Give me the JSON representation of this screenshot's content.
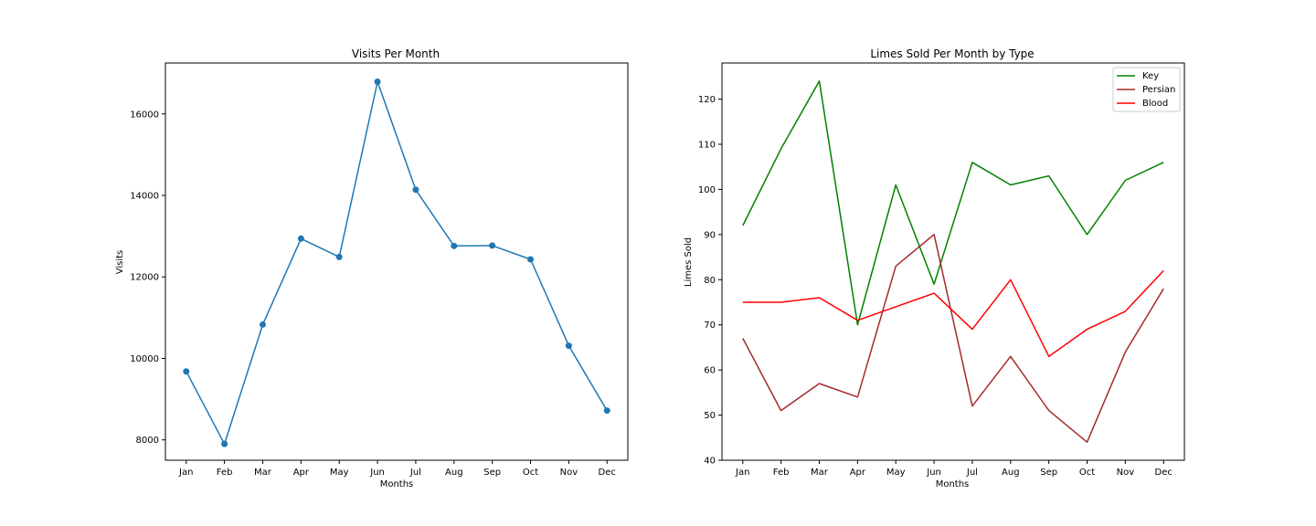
{
  "chart_data": [
    {
      "type": "line",
      "title": "Visits Per Month",
      "xlabel": "Months",
      "ylabel": "Visits",
      "categories": [
        "Jan",
        "Feb",
        "Mar",
        "Apr",
        "May",
        "Jun",
        "Jul",
        "Aug",
        "Sep",
        "Oct",
        "Nov",
        "Dec"
      ],
      "ylim": [
        7500,
        17250
      ],
      "yticks": [
        8000,
        10000,
        12000,
        14000,
        16000
      ],
      "grid": false,
      "markers": true,
      "series": [
        {
          "color": "#1f77b4",
          "values": [
            9680,
            7900,
            10830,
            12940,
            12490,
            16790,
            14140,
            12760,
            12770,
            12430,
            10310,
            8720
          ]
        }
      ]
    },
    {
      "type": "line",
      "title": "Limes Sold Per Month by Type",
      "xlabel": "Months",
      "ylabel": "Limes Sold",
      "categories": [
        "Jan",
        "Feb",
        "Mar",
        "Apr",
        "May",
        "Jun",
        "Jul",
        "Aug",
        "Sep",
        "Oct",
        "Nov",
        "Dec"
      ],
      "ylim": [
        40,
        128
      ],
      "yticks": [
        40,
        50,
        60,
        70,
        80,
        90,
        100,
        110,
        120
      ],
      "grid": false,
      "markers": false,
      "legend": "top-right",
      "series": [
        {
          "name": "Key",
          "color": "#008000",
          "values": [
            92,
            109,
            124,
            70,
            101,
            79,
            106,
            101,
            103,
            90,
            102,
            106
          ]
        },
        {
          "name": "Persian",
          "color": "#a52a2a",
          "values": [
            67,
            51,
            57,
            54,
            83,
            90,
            52,
            63,
            51,
            44,
            64,
            78
          ]
        },
        {
          "name": "Blood",
          "color": "#ff0000",
          "values": [
            75,
            75,
            76,
            71,
            74,
            77,
            69,
            80,
            63,
            69,
            73,
            82
          ]
        }
      ]
    }
  ]
}
